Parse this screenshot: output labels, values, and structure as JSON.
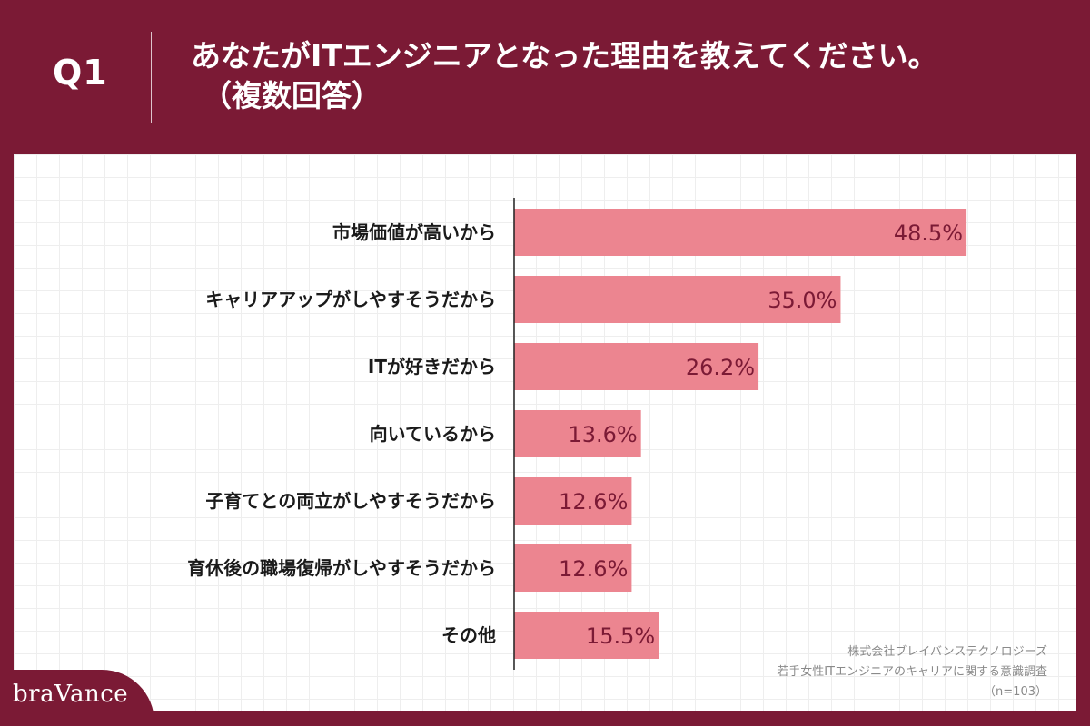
{
  "header": {
    "q_label": "Q1",
    "title_line1": "あなたがITエンジニアとなった理由を教えてください。",
    "title_line2": "（複数回答）"
  },
  "source": {
    "company": "株式会社ブレイバンステクノロジーズ",
    "survey": "若手女性ITエンジニアのキャリアに関する意識調査",
    "sample": "（n=103）"
  },
  "logo": {
    "text": "braVance"
  },
  "colors": {
    "background": "#7b1a35",
    "bar": "#ec8590",
    "value_text": "#7b1a35"
  },
  "chart_data": {
    "type": "bar",
    "orientation": "horizontal",
    "categories": [
      "市場価値が高いから",
      "キャリアアップがしやすそうだから",
      "ITが好きだから",
      "向いているから",
      "子育てとの両立がしやすそうだから",
      "育休後の職場復帰がしやすそうだから",
      "その他"
    ],
    "values": [
      48.5,
      35.0,
      26.2,
      13.6,
      12.6,
      12.6,
      15.5
    ],
    "value_labels": [
      "48.5%",
      "35.0%",
      "26.2%",
      "13.6%",
      "12.6%",
      "12.6%",
      "15.5%"
    ],
    "unit": "%",
    "xlim": [
      0,
      50
    ],
    "grid": true
  }
}
